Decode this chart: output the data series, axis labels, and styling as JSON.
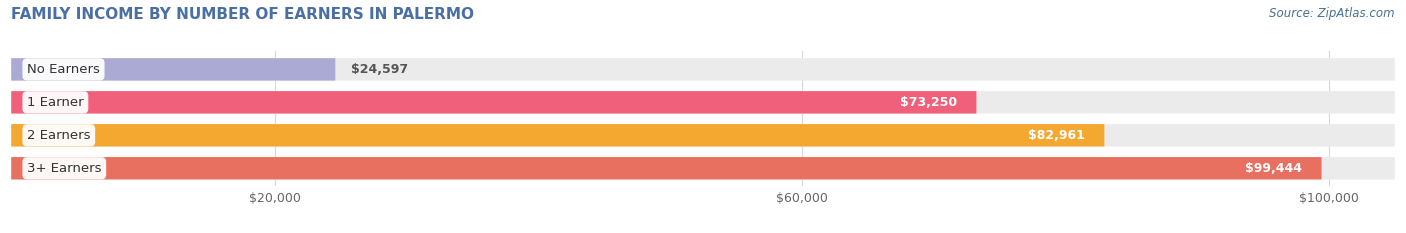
{
  "title": "FAMILY INCOME BY NUMBER OF EARNERS IN PALERMO",
  "source": "Source: ZipAtlas.com",
  "categories": [
    "No Earners",
    "1 Earner",
    "2 Earners",
    "3+ Earners"
  ],
  "values": [
    24597,
    73250,
    82961,
    99444
  ],
  "labels": [
    "$24,597",
    "$73,250",
    "$82,961",
    "$99,444"
  ],
  "bar_colors": [
    "#aaaad4",
    "#f0607a",
    "#f5a830",
    "#e87060"
  ],
  "bar_bg_color": "#ebebeb",
  "background_color": "#ffffff",
  "xmax": 105000,
  "xticks": [
    20000,
    60000,
    100000
  ],
  "xtick_labels": [
    "$20,000",
    "$60,000",
    "$100,000"
  ],
  "title_color": "#4a6fa5",
  "source_color": "#4a7090",
  "bar_height": 0.68,
  "grid_color": "#d8d8d8",
  "label_outside_threshold": 0.3
}
